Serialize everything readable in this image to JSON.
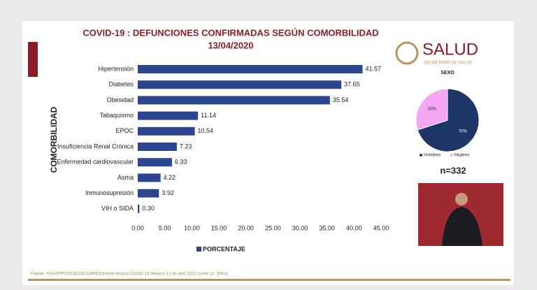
{
  "chart_data": [
    {
      "type": "barh",
      "title": "COVID-19 : DEFUNCIONES CONFIRMADAS SEGÚN COMORBILIDAD",
      "subtitle": "13/04/2020",
      "ylabel": "COMORBILIDAD",
      "categories": [
        "Hipertensión",
        "Diabetes",
        "Obesidad",
        "Tabaquismo",
        "EPOC",
        "Insuficiencia Renal Crónica",
        "Enfermedad cardiovascular",
        "Asma",
        "Inmunosupresión",
        "VIH o SIDA"
      ],
      "series": [
        {
          "name": "PORCENTAJE",
          "color": "#2b4590",
          "values": [
            41.57,
            37.65,
            35.54,
            11.14,
            10.54,
            7.23,
            6.33,
            4.22,
            3.92,
            0.3
          ],
          "value_labels": [
            "41.57",
            "37.65",
            "35.54",
            "11.14",
            "10.54",
            "7.23",
            "6.33",
            "4.22",
            "3.92",
            "0.30"
          ]
        }
      ],
      "xlim": [
        0,
        45
      ],
      "xticks": [
        {
          "value": 0,
          "label": "0.00"
        },
        {
          "value": 5,
          "label": "5.00"
        },
        {
          "value": 10,
          "label": "10.00"
        },
        {
          "value": 15,
          "label": "15.00"
        },
        {
          "value": 20,
          "label": "20.00"
        },
        {
          "value": 25,
          "label": "25.00"
        },
        {
          "value": 30,
          "label": "30.00"
        },
        {
          "value": 35,
          "label": "35.00"
        },
        {
          "value": 40,
          "label": "40.00"
        },
        {
          "value": 45,
          "label": "45.00"
        }
      ],
      "source": "Fuente: SSA/SPPS/DGE/DIE/InDRE/Informe técnico.COVID-19 /Mexico-13 de abril 2020 (corte 14: 30hrs)"
    },
    {
      "type": "pie",
      "title": "SEXO",
      "categories": [
        "Hombres",
        "Mujeres"
      ],
      "colors": [
        "#1e3568",
        "#f4a6f2"
      ],
      "values": [
        70,
        30
      ],
      "value_labels": [
        "70%",
        "30%"
      ],
      "annotation": "n=332"
    }
  ],
  "logo": {
    "name": "SALUD",
    "subtitle": "SECRETARÍA DE SALUD"
  }
}
